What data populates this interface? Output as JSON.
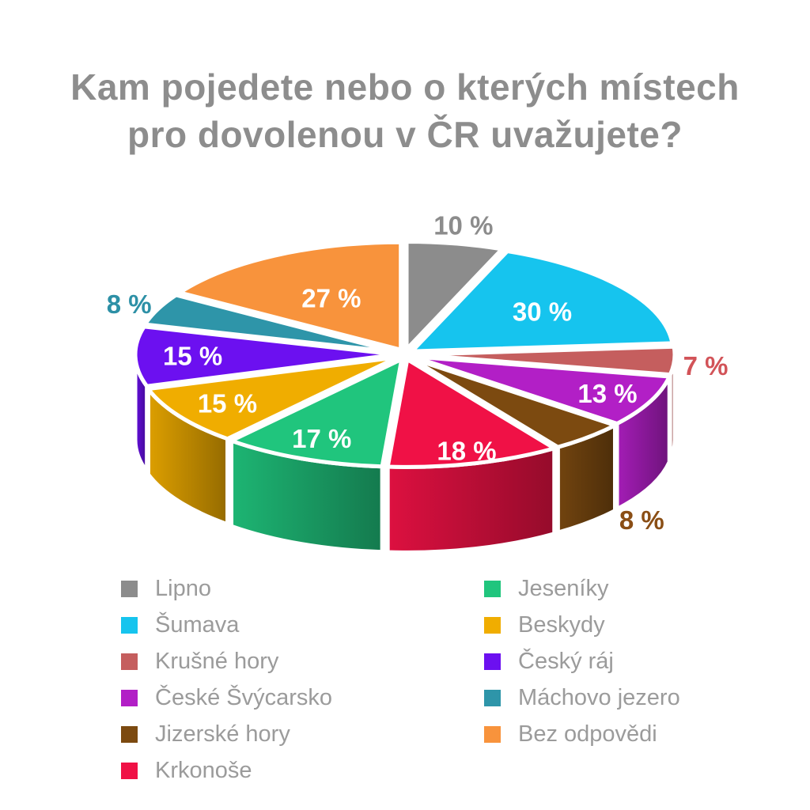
{
  "page": {
    "background": "#ffffff"
  },
  "title": {
    "lines": [
      "Kam pojedete nebo o kterých místech",
      "pro dovolenou v ČR uvažujete?"
    ],
    "color": "#8d8d8d"
  },
  "chart_data": {
    "type": "pie",
    "style": "3d-exploded",
    "title": "Kam pojedete nebo o kterých místech pro dovolenou v ČR uvažujete?",
    "unit": "%",
    "clockwise": true,
    "start_angle_deg": 0,
    "legend_position": "bottom",
    "legend_columns": [
      6,
      5
    ],
    "slices": [
      {
        "label": "Lipno",
        "value": 10,
        "color": "#8c8c8c",
        "label_color": "#8c8c8c",
        "label_position": "outside",
        "label_k": 1.17
      },
      {
        "label": "Šumava",
        "value": 30,
        "color": "#16c4ee",
        "label_color": "#ffffff",
        "label_position": "inside",
        "label_k": 0.62
      },
      {
        "label": "Krušné hory",
        "value": 7,
        "color": "#c55e5e",
        "label_color": "#d25358",
        "label_position": "outside",
        "label_k": 1.12
      },
      {
        "label": "České Švýcarsko",
        "value": 13,
        "color": "#b21fc6",
        "label_color": "#ffffff",
        "label_position": "inside",
        "label_k": 0.82
      },
      {
        "label": "Jizerské hory",
        "value": 8,
        "color": "#7c4a10",
        "label_color": "#8a4e15",
        "label_position": "outside",
        "label_k": 1.3
      },
      {
        "label": "Krkonoše",
        "value": 18,
        "color": "#f01146",
        "label_color": "#ffffff",
        "label_position": "inside",
        "label_k": 0.88
      },
      {
        "label": "Jeseníky",
        "value": 17,
        "color": "#20c57d",
        "label_color": "#ffffff",
        "label_position": "inside",
        "label_k": 0.8
      },
      {
        "label": "Beskydy",
        "value": 15,
        "color": "#f0ad00",
        "label_color": "#ffffff",
        "label_position": "inside",
        "label_k": 0.78
      },
      {
        "label": "Český ráj",
        "value": 15,
        "color": "#6c10f0",
        "label_color": "#ffffff",
        "label_position": "inside",
        "label_k": 0.78
      },
      {
        "label": "Máchovo jezero",
        "value": 8,
        "color": "#2e95a9",
        "label_color": "#2d90a6",
        "label_position": "outside",
        "label_k": 1.12
      },
      {
        "label": "Bez odpovědi",
        "value": 27,
        "color": "#f8933c",
        "label_color": "#ffffff",
        "label_position": "inside",
        "label_k": 0.55
      }
    ]
  },
  "legend": {
    "text_color": "#9b9b9b"
  }
}
